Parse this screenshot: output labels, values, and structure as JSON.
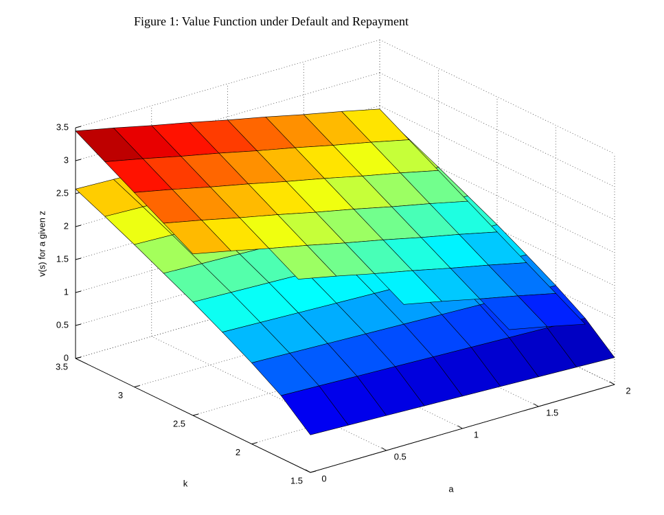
{
  "chart_data": {
    "type": "surface",
    "title": "Figure 1: Value Function under Default and Repayment",
    "xlabel": "a",
    "ylabel": "k",
    "zlabel": "v(s) for a given z",
    "colormap": "jet",
    "grid": true,
    "x": [
      0,
      0.25,
      0.5,
      0.75,
      1,
      1.25,
      1.5,
      1.75,
      2
    ],
    "y": [
      1.5,
      1.75,
      2,
      2.25,
      2.5,
      2.75,
      3,
      3.25,
      3.5
    ],
    "xlim": [
      0,
      2
    ],
    "xticks": [
      0,
      0.5,
      1,
      1.5,
      2
    ],
    "ylim": [
      1.5,
      3.5
    ],
    "yticks": [
      1.5,
      2,
      2.5,
      3,
      3.5
    ],
    "zlim": [
      0,
      3.5
    ],
    "zticks": [
      0,
      0.5,
      1,
      1.5,
      2,
      2.5,
      3,
      3.5
    ],
    "series": [
      {
        "values": [
          [
            0.57,
            0.55,
            0.53,
            0.51,
            0.49,
            0.47,
            0.45,
            0.43,
            0.41
          ],
          [
            0.95,
            0.93,
            0.91,
            0.89,
            0.87,
            0.85,
            0.83,
            0.81,
            0.79
          ],
          [
            1.23,
            1.21,
            1.19,
            1.17,
            1.15,
            1.13,
            1.11,
            1.09,
            1.07
          ],
          [
            1.48,
            1.46,
            1.44,
            1.42,
            1.4,
            1.38,
            1.36,
            1.34,
            1.32
          ],
          [
            1.72,
            1.7,
            1.68,
            1.66,
            1.64,
            1.62,
            1.6,
            1.58,
            1.56
          ],
          [
            1.94,
            1.92,
            1.9,
            1.88,
            1.86,
            1.84,
            1.82,
            1.8,
            1.78
          ],
          [
            2.16,
            2.14,
            2.12,
            2.1,
            2.08,
            2.06,
            2.04,
            2.02,
            2.0
          ],
          [
            2.37,
            2.35,
            2.33,
            2.31,
            2.29,
            2.27,
            2.25,
            2.23,
            2.21
          ],
          [
            2.57,
            2.55,
            2.53,
            2.51,
            2.49,
            2.47,
            2.45,
            2.43,
            2.41
          ]
        ]
      },
      {
        "values": [
          [
            null,
            null,
            null,
            null,
            null,
            null,
            null,
            null,
            0.45
          ],
          [
            null,
            null,
            null,
            null,
            null,
            null,
            0.95,
            0.83,
            0.7
          ],
          [
            null,
            null,
            null,
            null,
            1.45,
            1.33,
            1.2,
            1.08,
            0.95
          ],
          [
            null,
            null,
            1.95,
            1.83,
            1.7,
            1.58,
            1.45,
            1.33,
            1.2
          ],
          [
            2.45,
            2.33,
            2.2,
            2.08,
            1.95,
            1.83,
            1.7,
            1.58,
            1.45
          ],
          [
            2.7,
            2.58,
            2.45,
            2.33,
            2.2,
            2.08,
            1.95,
            1.83,
            1.7
          ],
          [
            2.95,
            2.83,
            2.7,
            2.58,
            2.45,
            2.33,
            2.2,
            2.08,
            1.95
          ],
          [
            3.2,
            3.08,
            2.95,
            2.83,
            2.7,
            2.58,
            2.45,
            2.33,
            2.2
          ],
          [
            3.45,
            3.33,
            3.2,
            3.08,
            2.95,
            2.83,
            2.7,
            2.58,
            2.45
          ]
        ]
      }
    ]
  }
}
